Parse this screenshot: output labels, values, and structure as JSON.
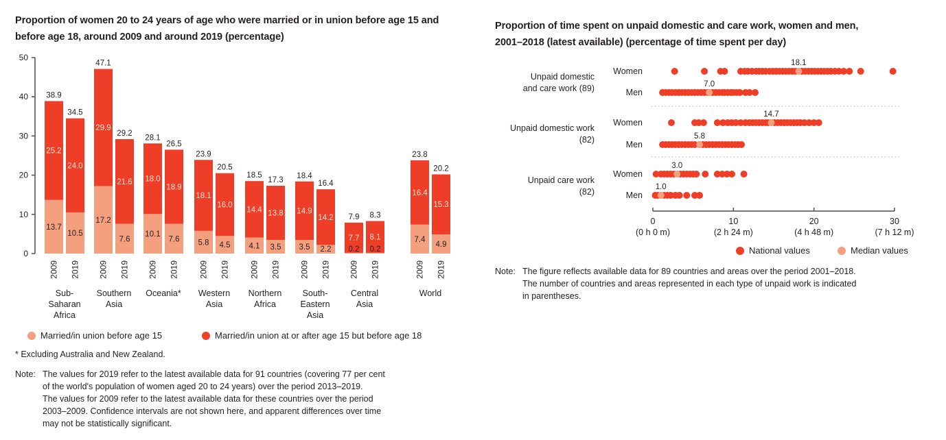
{
  "left_chart": {
    "title": "Proportion of women 20 to 24 years of age who were married or in union before age 15 and before age 18, around 2009 and around 2019 (percentage)",
    "footnote": "* Excluding Australia and New Zealand.",
    "note_label": "Note:",
    "note_lines": [
      "The values for 2019 refer to the latest available data for 91 countries (covering 77 per cent",
      "of the world's population of women aged 20 to 24 years) over the period 2013–2019.",
      "The values for 2009 refer to the latest available data for these countries over the period",
      "2003–2009.  Confidence intervals are not shown here, and apparent differences over time",
      "may not be statistically significant."
    ],
    "legend": [
      {
        "label": "Married/in union before age 15",
        "color": "#f4a07f"
      },
      {
        "label": "Married/in union at or after age 15 but before age 18",
        "color": "#ef3e27"
      }
    ]
  },
  "right_chart": {
    "title_line1": "Proportion of time spent on unpaid domestic and care work, women and men,",
    "title_line2": "2001–2018 (latest available) (percentage of time spent per day)",
    "note_label": "Note:",
    "note_lines": [
      "The figure reflects available data for 89 countries and areas over the period 2001–2018.",
      "The number of countries and areas represented in each type of unpaid work is indicated",
      "in parentheses."
    ],
    "legend": [
      {
        "label": "National values",
        "color": "#ef3e27"
      },
      {
        "label": "Median values",
        "color": "#f4a07f"
      }
    ]
  },
  "chart_data": [
    {
      "type": "bar",
      "stacked": true,
      "title": "Proportion of women 20 to 24 years of age who were married or in union before age 15 and before age 18, around 2009 and around 2019 (percentage)",
      "ylim": [
        0,
        50
      ],
      "yticks": [
        0,
        10,
        20,
        30,
        40,
        50
      ],
      "groups": [
        {
          "name": "Sub-Saharan Africa",
          "label_lines": [
            "Sub-",
            "Saharan",
            "Africa"
          ],
          "bars": [
            {
              "year": "2009",
              "before15": 13.7,
              "15to18": 25.2,
              "total": 38.9
            },
            {
              "year": "2019",
              "before15": 10.5,
              "15to18": 24.0,
              "total": 34.5
            }
          ]
        },
        {
          "name": "Southern Asia",
          "label_lines": [
            "Southern",
            "Asia"
          ],
          "bars": [
            {
              "year": "2009",
              "before15": 17.2,
              "15to18": 29.9,
              "total": 47.1
            },
            {
              "year": "2019",
              "before15": 7.6,
              "15to18": 21.6,
              "total": 29.2
            }
          ]
        },
        {
          "name": "Oceania*",
          "label_lines": [
            "Oceania*"
          ],
          "bars": [
            {
              "year": "2009",
              "before15": 10.1,
              "15to18": 18.0,
              "total": 28.1
            },
            {
              "year": "2019",
              "before15": 7.6,
              "15to18": 18.9,
              "total": 26.5
            }
          ]
        },
        {
          "name": "Western Asia",
          "label_lines": [
            "Western",
            "Asia"
          ],
          "bars": [
            {
              "year": "2009",
              "before15": 5.8,
              "15to18": 18.1,
              "total": 23.9
            },
            {
              "year": "2019",
              "before15": 4.5,
              "15to18": 16.0,
              "total": 20.5
            }
          ]
        },
        {
          "name": "Northern Africa",
          "label_lines": [
            "Northern",
            "Africa"
          ],
          "bars": [
            {
              "year": "2009",
              "before15": 4.1,
              "15to18": 14.4,
              "total": 18.5
            },
            {
              "year": "2019",
              "before15": 3.5,
              "15to18": 13.8,
              "total": 17.3
            }
          ]
        },
        {
          "name": "South-Eastern Asia",
          "label_lines": [
            "South-",
            "Eastern",
            "Asia"
          ],
          "bars": [
            {
              "year": "2009",
              "before15": 3.5,
              "15to18": 14.9,
              "total": 18.4
            },
            {
              "year": "2019",
              "before15": 2.2,
              "15to18": 14.2,
              "total": 16.4
            }
          ]
        },
        {
          "name": "Central Asia",
          "label_lines": [
            "Central",
            "Asia"
          ],
          "bars": [
            {
              "year": "2009",
              "before15": 0.2,
              "15to18": 7.7,
              "total": 7.9
            },
            {
              "year": "2019",
              "before15": 0.2,
              "15to18": 8.1,
              "total": 8.3
            }
          ]
        },
        {
          "name": "World",
          "label_lines": [
            "World"
          ],
          "spaced": true,
          "bars": [
            {
              "year": "2009",
              "before15": 7.4,
              "15to18": 16.4,
              "total": 23.8
            },
            {
              "year": "2019",
              "before15": 4.9,
              "15to18": 15.3,
              "total": 20.2
            }
          ]
        }
      ],
      "series": [
        {
          "name": "Married/in union before age 15",
          "key": "before15",
          "color": "#f4a07f"
        },
        {
          "name": "Married/in union at or after age 15 but before age 18",
          "key": "15to18",
          "color": "#ef3e27"
        }
      ]
    },
    {
      "type": "scatter",
      "title": "Proportion of time spent on unpaid domestic and care work, women and men, 2001–2018 (latest available) (percentage of time spent per day)",
      "xlim": [
        0,
        30
      ],
      "xticks": [
        {
          "value": 0,
          "label": "0",
          "sublabel": "(0 h 0 m)"
        },
        {
          "value": 10,
          "label": "10",
          "sublabel": "(2 h 24 m)"
        },
        {
          "value": 20,
          "label": "20",
          "sublabel": "(4 h 48 m)"
        },
        {
          "value": 30,
          "label": "30",
          "sublabel": "(7 h 12 m)"
        }
      ],
      "categories": [
        {
          "name": "Unpaid domestic and care work",
          "count": 89,
          "label_lines": [
            "Unpaid domestic",
            "and care work (89)"
          ],
          "rows": [
            {
              "sex": "Women",
              "median": 18.1,
              "values": [
                2.7,
                6.4,
                8.4,
                8.9,
                10.9,
                11.4,
                11.8,
                12.3,
                12.8,
                13.2,
                13.6,
                14.0,
                14.5,
                14.9,
                15.3,
                15.7,
                16.1,
                16.5,
                16.9,
                17.3,
                17.7,
                18.1,
                18.5,
                18.9,
                19.3,
                19.7,
                20.1,
                20.5,
                20.9,
                21.3,
                21.7,
                22.1,
                22.6,
                23.1,
                23.7,
                24.4,
                25.8,
                29.8
              ]
            },
            {
              "sex": "Men",
              "median": 7.0,
              "values": [
                1.2,
                1.6,
                2.0,
                2.4,
                2.8,
                3.2,
                3.6,
                4.0,
                4.4,
                4.8,
                5.2,
                5.6,
                6.0,
                6.4,
                6.8,
                7.0,
                7.4,
                7.8,
                8.2,
                8.6,
                8.9,
                9.3,
                9.7,
                10.0,
                10.4,
                10.8,
                11.5,
                12.0,
                12.7
              ]
            }
          ]
        },
        {
          "name": "Unpaid domestic work",
          "count": 82,
          "label_lines": [
            "Unpaid domestic work",
            "(82)"
          ],
          "rows": [
            {
              "sex": "Women",
              "median": 14.7,
              "values": [
                2.3,
                5.2,
                5.7,
                6.3,
                8.0,
                8.7,
                9.3,
                9.8,
                10.3,
                10.9,
                11.5,
                12.0,
                12.4,
                12.8,
                13.2,
                13.6,
                14.0,
                14.3,
                14.7,
                15.1,
                15.5,
                15.9,
                16.3,
                16.7,
                17.1,
                17.5,
                17.9,
                18.3,
                18.8,
                19.4,
                20.0,
                20.6
              ]
            },
            {
              "sex": "Men",
              "median": 5.8,
              "values": [
                1.2,
                1.6,
                2.0,
                2.4,
                2.8,
                3.2,
                3.6,
                4.0,
                4.4,
                4.8,
                5.2,
                5.8,
                6.2,
                6.6,
                7.0,
                7.4,
                7.8,
                8.2,
                8.6,
                9.0,
                9.4,
                9.8,
                10.2,
                10.6,
                11.0
              ]
            }
          ]
        },
        {
          "name": "Unpaid care work",
          "count": 82,
          "label_lines": [
            "Unpaid care work",
            "(82)"
          ],
          "rows": [
            {
              "sex": "Women",
              "median": 3.0,
              "values": [
                0.4,
                1.0,
                1.4,
                1.8,
                2.2,
                2.6,
                3.0,
                3.4,
                3.8,
                4.2,
                4.6,
                5.0,
                5.4,
                6.5,
                8.0,
                8.6,
                9.2,
                9.8,
                11.3
              ]
            },
            {
              "sex": "Men",
              "median": 1.0,
              "values": [
                0.3,
                0.6,
                1.0,
                1.4,
                1.8,
                2.2,
                2.8,
                3.3,
                4.2,
                5.2,
                5.8
              ]
            }
          ]
        }
      ],
      "legend_position": "bottom-right"
    }
  ]
}
